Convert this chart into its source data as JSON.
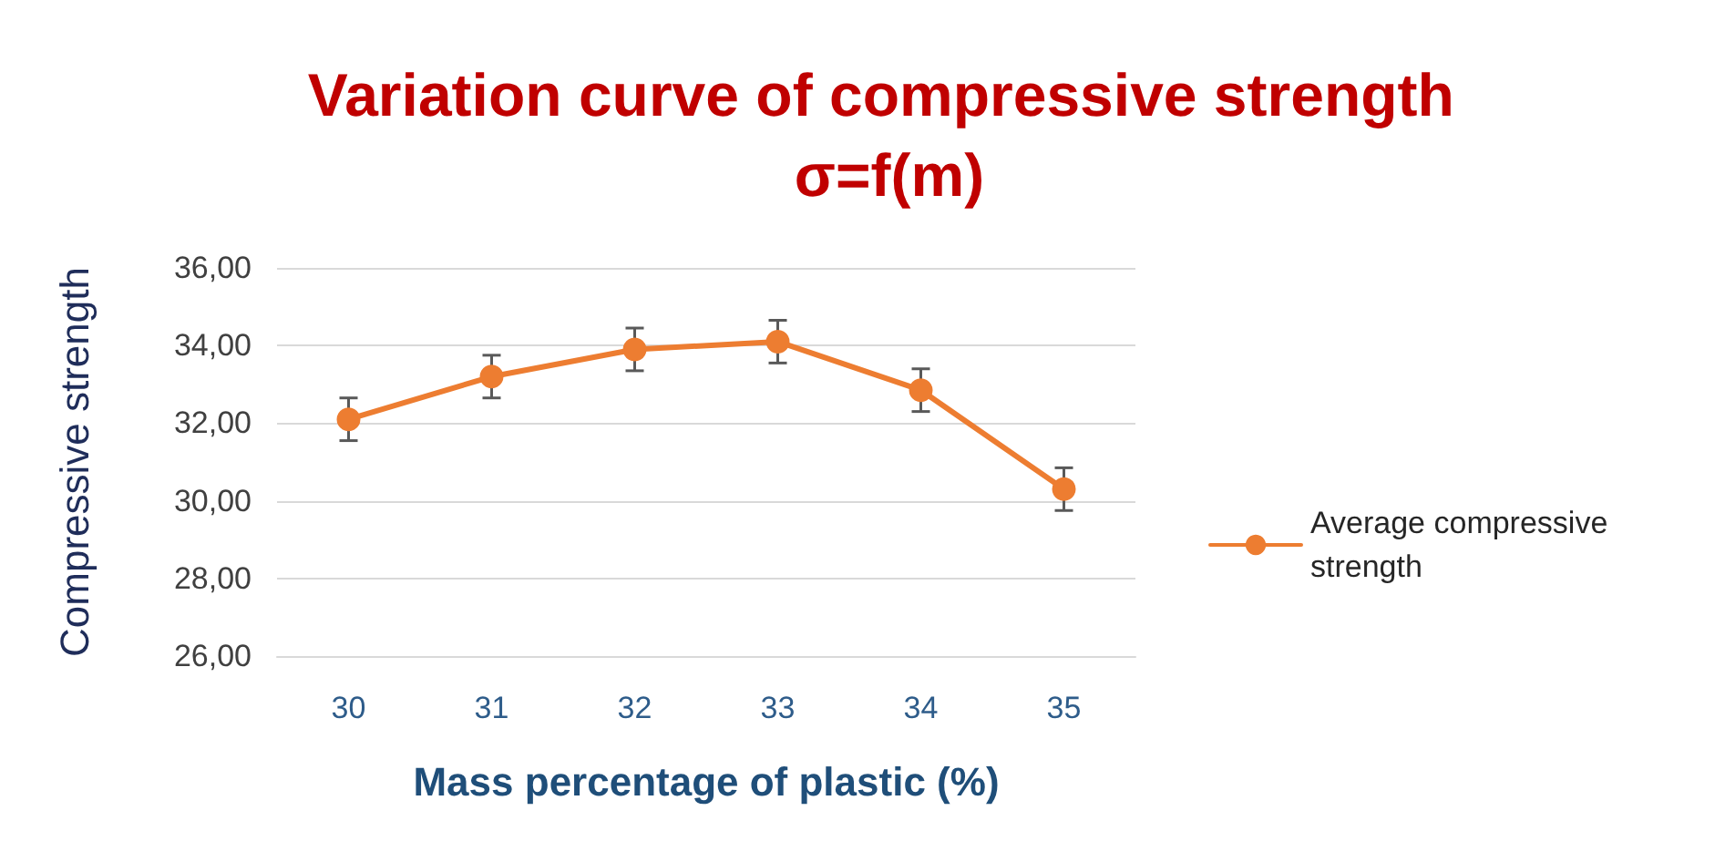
{
  "chart_data": {
    "type": "line",
    "title": "Variation curve of compressive strength σ=f(m)",
    "xlabel": "Mass percentage of plastic (%)",
    "ylabel": "Compressive strength",
    "categories": [
      "30",
      "31",
      "32",
      "33",
      "34",
      "35"
    ],
    "series": [
      {
        "name": "Average compressive strength",
        "color": "#ed7d31",
        "values": [
          32.1,
          33.2,
          33.9,
          34.1,
          32.85,
          30.3
        ],
        "errors": [
          0.55,
          0.55,
          0.55,
          0.55,
          0.55,
          0.55
        ]
      }
    ],
    "ylim": [
      26,
      36
    ],
    "yticks": [
      {
        "value": 26,
        "label": "26,00"
      },
      {
        "value": 28,
        "label": "28,00"
      },
      {
        "value": 30,
        "label": "30,00"
      },
      {
        "value": 32,
        "label": "32,00"
      },
      {
        "value": 34,
        "label": "34,00"
      },
      {
        "value": 36,
        "label": "36,00"
      }
    ],
    "grid": "y",
    "legend": "right",
    "marker": "circle",
    "line_style": "solid"
  }
}
